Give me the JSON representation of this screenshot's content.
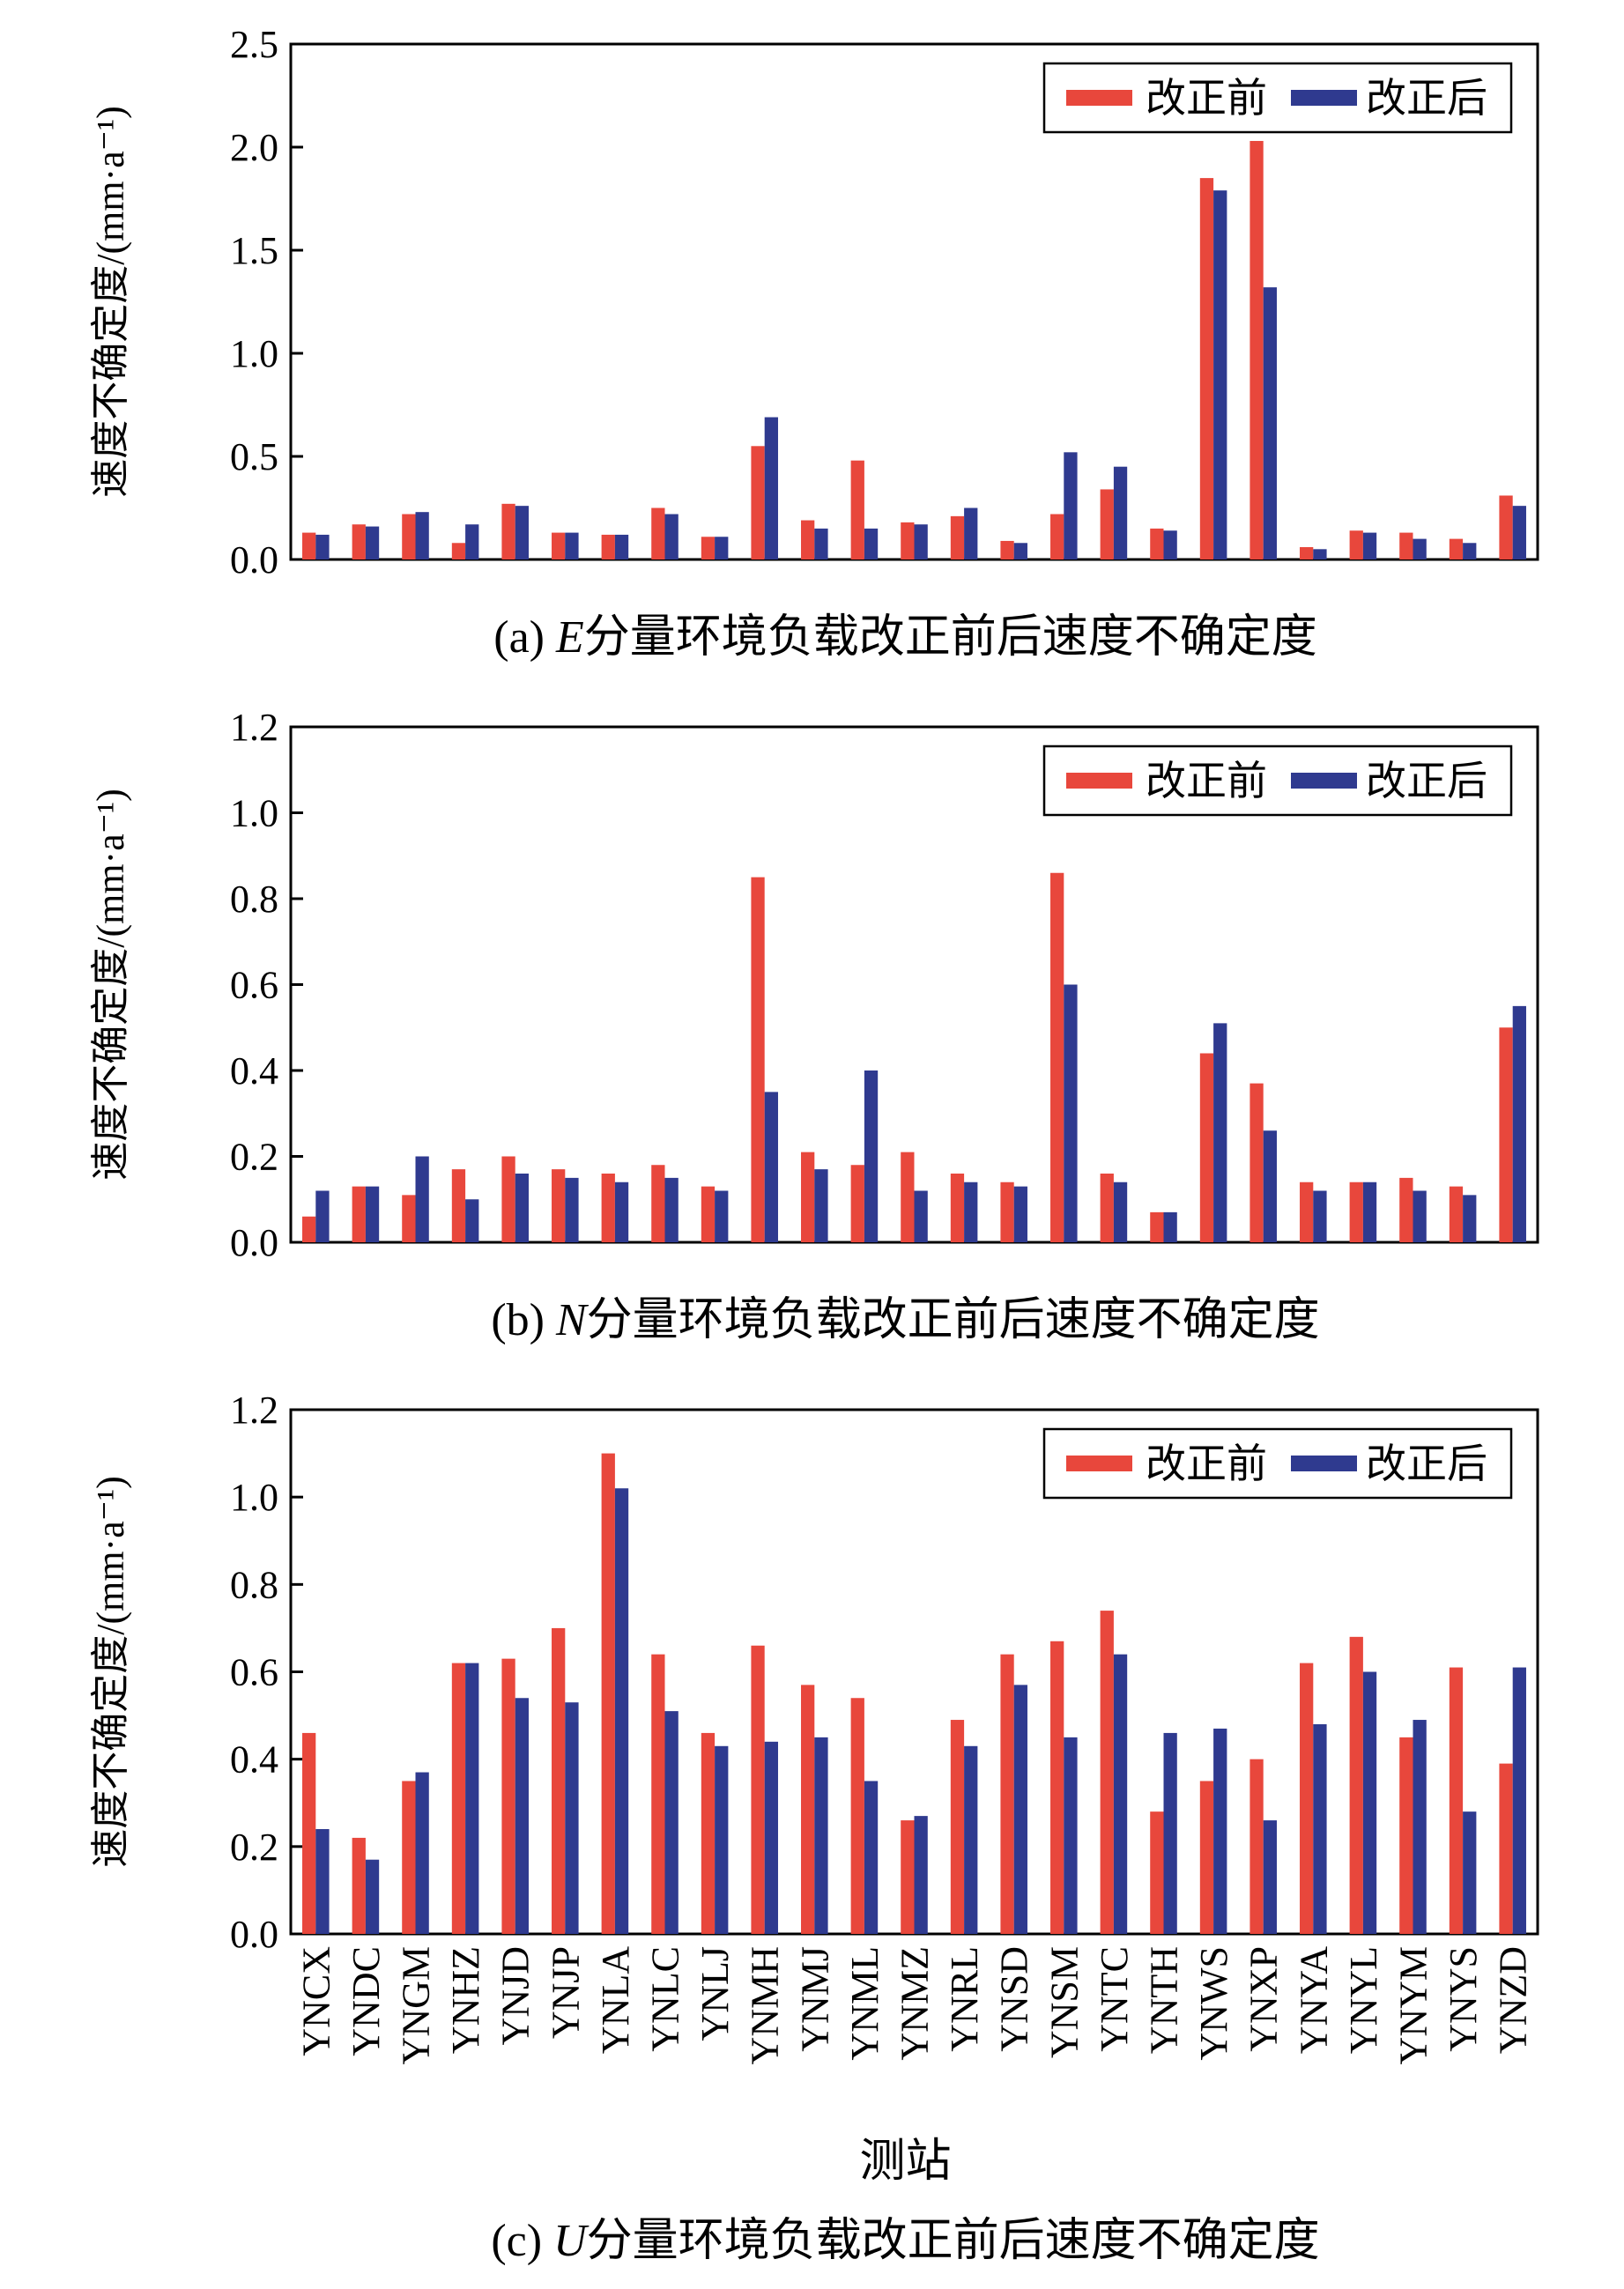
{
  "chart_data": [
    {
      "type": "bar",
      "panel": "a",
      "caption": "(a) E分量环境负载改正前后速度不确定度",
      "caption_prefix": "(a) ",
      "caption_italic": "E",
      "caption_rest": "分量环境负载改正前后速度不确定度",
      "ylabel": "速度不确定度/(mm·a⁻¹)",
      "ylim": [
        0,
        2.5
      ],
      "yticks": [
        "0.0",
        "0.5",
        "1.0",
        "1.5",
        "2.0",
        "2.5"
      ],
      "legend": [
        "改正前",
        "改正后"
      ],
      "legend_position": "top-right",
      "categories": [
        "YNCX",
        "YNDC",
        "YNGM",
        "YNHZ",
        "YNJD",
        "YNJP",
        "YNLA",
        "YNLC",
        "YNLJ",
        "YNMH",
        "YNMJ",
        "YNML",
        "YNMZ",
        "YNRL",
        "YNSD",
        "YNSM",
        "YNTC",
        "YNTH",
        "YNWS",
        "YNXP",
        "YNYA",
        "YNYL",
        "YNYM",
        "YNYS",
        "YNZD"
      ],
      "series": [
        {
          "name": "改正前",
          "values": [
            0.13,
            0.17,
            0.22,
            0.08,
            0.27,
            0.13,
            0.12,
            0.25,
            0.11,
            0.55,
            0.19,
            0.48,
            0.18,
            0.21,
            0.09,
            0.22,
            0.34,
            0.15,
            1.85,
            2.03,
            0.06,
            0.14,
            0.13,
            0.1,
            0.31
          ]
        },
        {
          "name": "改正后",
          "values": [
            0.12,
            0.16,
            0.23,
            0.17,
            0.26,
            0.13,
            0.12,
            0.22,
            0.11,
            0.69,
            0.15,
            0.15,
            0.17,
            0.25,
            0.08,
            0.52,
            0.45,
            0.14,
            1.79,
            1.32,
            0.05,
            0.13,
            0.1,
            0.08,
            0.26
          ]
        }
      ]
    },
    {
      "type": "bar",
      "panel": "b",
      "caption": "(b) N分量环境负载改正前后速度不确定度",
      "caption_prefix": "(b) ",
      "caption_italic": "N",
      "caption_rest": "分量环境负载改正前后速度不确定度",
      "ylabel": "速度不确定度/(mm·a⁻¹)",
      "ylim": [
        0,
        1.2
      ],
      "yticks": [
        "0.0",
        "0.2",
        "0.4",
        "0.6",
        "0.8",
        "1.0",
        "1.2"
      ],
      "legend": [
        "改正前",
        "改正后"
      ],
      "legend_position": "top-right",
      "categories": [
        "YNCX",
        "YNDC",
        "YNGM",
        "YNHZ",
        "YNJD",
        "YNJP",
        "YNLA",
        "YNLC",
        "YNLJ",
        "YNMH",
        "YNMJ",
        "YNML",
        "YNMZ",
        "YNRL",
        "YNSD",
        "YNSM",
        "YNTC",
        "YNTH",
        "YNWS",
        "YNXP",
        "YNYA",
        "YNYL",
        "YNYM",
        "YNYS",
        "YNZD"
      ],
      "series": [
        {
          "name": "改正前",
          "values": [
            0.06,
            0.13,
            0.11,
            0.17,
            0.2,
            0.17,
            0.16,
            0.18,
            0.13,
            0.85,
            0.21,
            0.18,
            0.21,
            0.16,
            0.14,
            0.86,
            0.16,
            0.07,
            0.44,
            0.37,
            0.14,
            0.14,
            0.15,
            0.13,
            0.5
          ]
        },
        {
          "name": "改正后",
          "values": [
            0.12,
            0.13,
            0.2,
            0.1,
            0.16,
            0.15,
            0.14,
            0.15,
            0.12,
            0.35,
            0.17,
            0.4,
            0.12,
            0.14,
            0.13,
            0.6,
            0.14,
            0.07,
            0.51,
            0.26,
            0.12,
            0.14,
            0.12,
            0.11,
            0.55
          ]
        }
      ]
    },
    {
      "type": "bar",
      "panel": "c",
      "caption": "(c) U分量环境负载改正前后速度不确定度",
      "caption_prefix": "(c) ",
      "caption_italic": "U",
      "caption_rest": "分量环境负载改正前后速度不确定度",
      "ylabel": "速度不确定度/(mm·a⁻¹)",
      "xlabel": "测站",
      "ylim": [
        0,
        1.2
      ],
      "yticks": [
        "0.0",
        "0.2",
        "0.4",
        "0.6",
        "0.8",
        "1.0",
        "1.2"
      ],
      "legend": [
        "改正前",
        "改正后"
      ],
      "legend_position": "top-right",
      "categories": [
        "YNCX",
        "YNDC",
        "YNGM",
        "YNHZ",
        "YNJD",
        "YNJP",
        "YNLA",
        "YNLC",
        "YNLJ",
        "YNMH",
        "YNMJ",
        "YNML",
        "YNMZ",
        "YNRL",
        "YNSD",
        "YNSM",
        "YNTC",
        "YNTH",
        "YNWS",
        "YNXP",
        "YNYA",
        "YNYL",
        "YNYM",
        "YNYS",
        "YNZD"
      ],
      "series": [
        {
          "name": "改正前",
          "values": [
            0.46,
            0.22,
            0.35,
            0.62,
            0.63,
            0.7,
            1.1,
            0.64,
            0.46,
            0.66,
            0.57,
            0.54,
            0.26,
            0.49,
            0.64,
            0.67,
            0.74,
            0.28,
            0.35,
            0.4,
            0.62,
            0.68,
            0.45,
            0.61,
            0.39
          ]
        },
        {
          "name": "改正后",
          "values": [
            0.24,
            0.17,
            0.37,
            0.62,
            0.54,
            0.53,
            1.02,
            0.51,
            0.43,
            0.44,
            0.45,
            0.35,
            0.27,
            0.43,
            0.57,
            0.45,
            0.64,
            0.46,
            0.47,
            0.26,
            0.48,
            0.6,
            0.49,
            0.28,
            0.61
          ]
        }
      ]
    }
  ],
  "colors": {
    "before": "#e8473c",
    "after": "#2f3a8f"
  }
}
